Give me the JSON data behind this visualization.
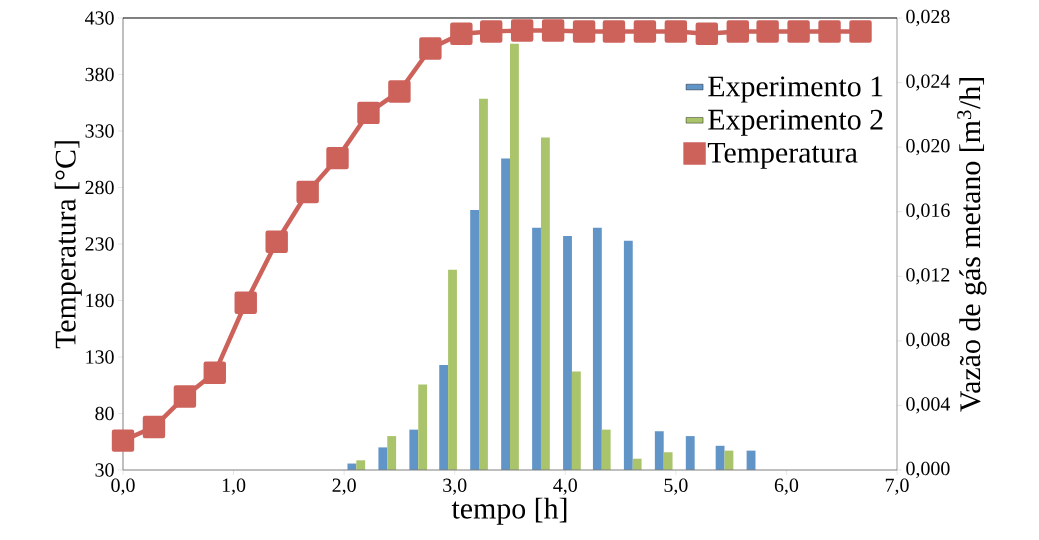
{
  "chart_data": {
    "type": "bar",
    "xlabel": "tempo [h]",
    "ylabel": "Temperatura [°C]",
    "y2label": "Vazão de gás metano [m$^{3}$/h]",
    "xlim": [
      0,
      7
    ],
    "xticks": [
      {
        "value": 0,
        "label": "0,0"
      },
      {
        "value": 1,
        "label": "1,0"
      },
      {
        "value": 2,
        "label": "2,0"
      },
      {
        "value": 3,
        "label": "3,0"
      },
      {
        "value": 4,
        "label": "4,0"
      },
      {
        "value": 5,
        "label": "5,0"
      },
      {
        "value": 6,
        "label": "6,0"
      },
      {
        "value": 7,
        "label": "7,0"
      }
    ],
    "ylim": [
      30,
      430
    ],
    "yticks": [
      30,
      80,
      130,
      180,
      230,
      280,
      330,
      380,
      430
    ],
    "y2lim": [
      0,
      0.028
    ],
    "y2ticks": [
      {
        "value": 0,
        "label": "0,000"
      },
      {
        "value": 0.004,
        "label": "0,004"
      },
      {
        "value": 0.008,
        "label": "0,008"
      },
      {
        "value": 0.012,
        "label": "0,012"
      },
      {
        "value": 0.016,
        "label": "0,016"
      },
      {
        "value": 0.02,
        "label": "0,020"
      },
      {
        "value": 0.024,
        "label": "0,024"
      },
      {
        "value": 0.028,
        "label": "0,028"
      }
    ],
    "legend": "top right",
    "series": [
      {
        "name": "Experimento 1",
        "axis": "y2",
        "color": "#6194c7",
        "x": [
          2.11,
          2.39,
          2.67,
          2.94,
          3.22,
          3.5,
          3.78,
          4.06,
          4.33,
          4.61,
          4.89,
          5.17,
          5.44,
          5.72
        ],
        "values": [
          0.0004,
          0.0014,
          0.0025,
          0.0065,
          0.0161,
          0.0193,
          0.015,
          0.0145,
          0.015,
          0.0142,
          0.0024,
          0.0021,
          0.0015,
          0.0012
        ]
      },
      {
        "name": "Experimento 2",
        "axis": "y2",
        "color": "#a9c46a",
        "x": [
          2.11,
          2.39,
          2.67,
          2.94,
          3.22,
          3.5,
          3.78,
          4.06,
          4.33,
          4.61,
          4.89,
          5.44
        ],
        "values": [
          0.0006,
          0.0021,
          0.0053,
          0.0124,
          0.023,
          0.0264,
          0.0206,
          0.0061,
          0.0025,
          0.0007,
          0.0011,
          0.0012
        ]
      },
      {
        "name": "Temperatura",
        "type": "line",
        "axis": "y",
        "color": "#cd625b",
        "marker": "square",
        "line_style": "solid",
        "x": [
          0,
          0.28,
          0.56,
          0.83,
          1.11,
          1.39,
          1.67,
          1.94,
          2.22,
          2.5,
          2.78,
          3.06,
          3.33,
          3.61,
          3.89,
          4.17,
          4.44,
          4.72,
          5.0,
          5.28,
          5.56,
          5.83,
          6.11,
          6.39,
          6.67
        ],
        "values": [
          56,
          68,
          95,
          116,
          178,
          232,
          276,
          306,
          346,
          365,
          403,
          416,
          418,
          419,
          419,
          418,
          418,
          418,
          418,
          416,
          418,
          418,
          418,
          418,
          418
        ]
      }
    ]
  }
}
